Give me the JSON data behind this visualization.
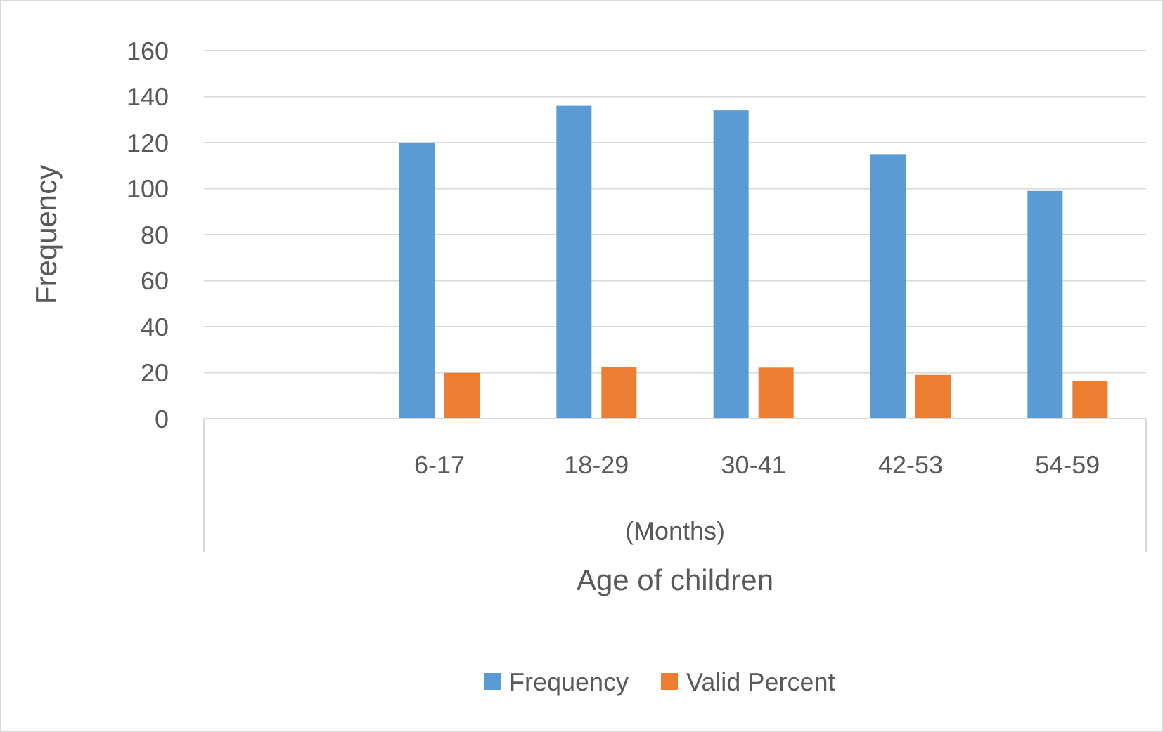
{
  "chart_data": {
    "type": "bar",
    "categories": [
      null,
      "6-17",
      "18-29",
      "30-41",
      "42-53",
      "54-59"
    ],
    "series": [
      {
        "name": "Frequency",
        "color": "#5b9bd5",
        "values": [
          null,
          120,
          136,
          134,
          115,
          99
        ]
      },
      {
        "name": "Valid Percent",
        "color": "#ed7d31",
        "values": [
          null,
          19.9,
          22.5,
          22.2,
          19,
          16.4
        ]
      }
    ],
    "ylim": [
      0,
      160
    ],
    "yticks": [
      0,
      20,
      40,
      60,
      80,
      100,
      120,
      140,
      160
    ],
    "grid": "y",
    "ylabel": "Frequency",
    "xlabel": "Age of children",
    "annotations": [
      "(Months)"
    ],
    "legend": "bottom"
  }
}
